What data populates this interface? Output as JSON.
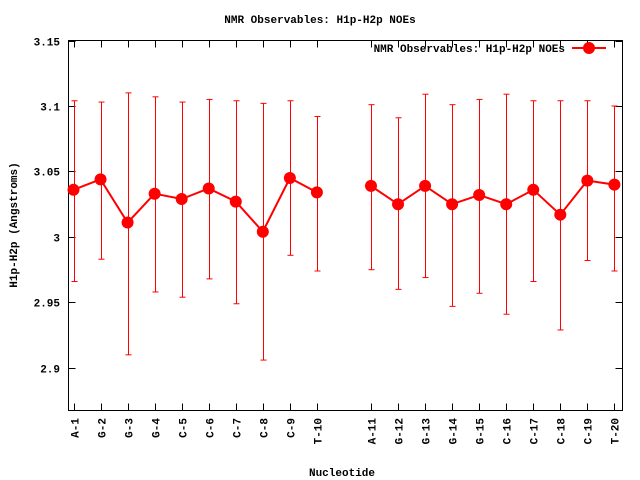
{
  "chart_data": {
    "type": "line",
    "title": "NMR Observables: H1p-H2p NOEs",
    "xlabel": "Nucleotide",
    "ylabel": "H1p-H2p (Angstroms)",
    "ylim": [
      2.8675,
      3.15
    ],
    "yticks": [
      2.9,
      2.95,
      3,
      3.05,
      3.1,
      3.15
    ],
    "ytick_labels": [
      "2.9",
      "2.95",
      "3",
      "3.05",
      "3.1",
      "3.15"
    ],
    "xlim": [
      0.815,
      21.3
    ],
    "grid": false,
    "legend": {
      "label": "NMR Observables: H1p-H2p NOEs",
      "placement": "top-right"
    },
    "series": [
      {
        "name": "NMR Observables: H1p-H2p NOEs",
        "color": "#ff0000",
        "points": [
          {
            "label": "A-1",
            "x": 1,
            "y": 3.036,
            "ylow": 2.966,
            "yhigh": 3.104
          },
          {
            "label": "G-2",
            "x": 2,
            "y": 3.044,
            "ylow": 2.983,
            "yhigh": 3.103
          },
          {
            "label": "G-3",
            "x": 3,
            "y": 3.011,
            "ylow": 2.91,
            "yhigh": 3.11
          },
          {
            "label": "G-4",
            "x": 4,
            "y": 3.033,
            "ylow": 2.958,
            "yhigh": 3.107
          },
          {
            "label": "C-5",
            "x": 5,
            "y": 3.029,
            "ylow": 2.954,
            "yhigh": 3.103
          },
          {
            "label": "C-6",
            "x": 6,
            "y": 3.037,
            "ylow": 2.968,
            "yhigh": 3.105
          },
          {
            "label": "C-7",
            "x": 7,
            "y": 3.027,
            "ylow": 2.949,
            "yhigh": 3.104
          },
          {
            "label": "C-8",
            "x": 8,
            "y": 3.004,
            "ylow": 2.906,
            "yhigh": 3.102
          },
          {
            "label": "C-9",
            "x": 9,
            "y": 3.045,
            "ylow": 2.986,
            "yhigh": 3.104
          },
          {
            "label": "T-10",
            "x": 10,
            "y": 3.034,
            "ylow": 2.974,
            "yhigh": 3.092
          },
          {
            "label": "A-11",
            "x": 12,
            "y": 3.039,
            "ylow": 2.975,
            "yhigh": 3.101
          },
          {
            "label": "G-12",
            "x": 13,
            "y": 3.025,
            "ylow": 2.96,
            "yhigh": 3.091
          },
          {
            "label": "G-13",
            "x": 14,
            "y": 3.039,
            "ylow": 2.969,
            "yhigh": 3.109
          },
          {
            "label": "G-14",
            "x": 15,
            "y": 3.025,
            "ylow": 2.947,
            "yhigh": 3.101
          },
          {
            "label": "G-15",
            "x": 16,
            "y": 3.032,
            "ylow": 2.957,
            "yhigh": 3.105
          },
          {
            "label": "C-16",
            "x": 17,
            "y": 3.025,
            "ylow": 2.941,
            "yhigh": 3.109
          },
          {
            "label": "C-17",
            "x": 18,
            "y": 3.036,
            "ylow": 2.966,
            "yhigh": 3.104
          },
          {
            "label": "C-18",
            "x": 19,
            "y": 3.017,
            "ylow": 2.929,
            "yhigh": 3.104
          },
          {
            "label": "C-19",
            "x": 20,
            "y": 3.043,
            "ylow": 2.982,
            "yhigh": 3.104
          },
          {
            "label": "T-20",
            "x": 21,
            "y": 3.04,
            "ylow": 2.974,
            "yhigh": 3.1
          }
        ]
      }
    ]
  }
}
